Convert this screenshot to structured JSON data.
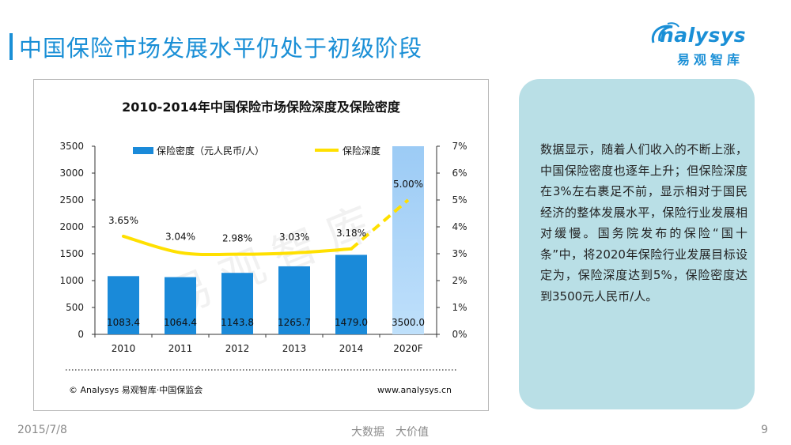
{
  "page": {
    "title": "中国保险市场发展水平仍处于初级阶段",
    "date": "2015/7/8",
    "slogan": "大数据　大价值",
    "page_number": "9"
  },
  "logo": {
    "word": "nalysys",
    "cn": "易观智库"
  },
  "note": {
    "text": "数据显示，随着人们收入的不断上涨，中国保险密度也逐年上升；但保险深度在3%左右裹足不前，显示相对于国民经济的整体发展水平，保险行业发展相对缓慢。国务院发布的保险“国十条”中，将2020年保险行业发展目标设定为，保险深度达到5%，保险密度达到3500元人民币/人。"
  },
  "colors": {
    "accent": "#1a8fd6",
    "bar": "#1a8ad9",
    "bar_forecast": "#9ccbf5",
    "line": "#ffe000",
    "note_bg": "#b9dfe6"
  },
  "chart_data": {
    "type": "bar",
    "title": "2010-2014年中国保险市场保险深度及保险密度",
    "categories": [
      "2010",
      "2011",
      "2012",
      "2013",
      "2014",
      "2020F"
    ],
    "series": [
      {
        "name": "保险密度（元人民币/人）",
        "type": "bar",
        "axis": "left",
        "values": [
          1083.4,
          1064.4,
          1143.8,
          1265.7,
          1479.0,
          3500.0
        ],
        "labels": [
          "1083.4",
          "1064.4",
          "1143.8",
          "1265.7",
          "1479.0",
          "3500.0"
        ]
      },
      {
        "name": "保险深度",
        "type": "line",
        "axis": "right",
        "values": [
          3.65,
          3.04,
          2.98,
          3.03,
          3.18,
          5.0
        ],
        "labels": [
          "3.65%",
          "3.04%",
          "2.98%",
          "3.03%",
          "3.18%",
          "5.00%"
        ]
      }
    ],
    "y_left": {
      "min": 0,
      "max": 3500,
      "ticks": [
        "0",
        "500",
        "1000",
        "1500",
        "2000",
        "2500",
        "3000",
        "3500"
      ]
    },
    "y_right": {
      "min": 0,
      "max": 7,
      "ticks": [
        "0%",
        "1%",
        "2%",
        "3%",
        "4%",
        "5%",
        "6%",
        "7%"
      ]
    },
    "legend_position": "top",
    "grid": false,
    "watermark": "易观智库",
    "source": "© Analysys 易观智库·中国保监会",
    "website": "www.analysys.cn"
  }
}
